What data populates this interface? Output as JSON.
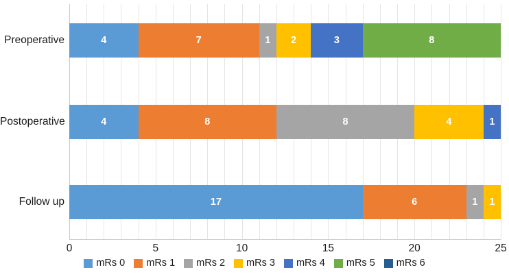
{
  "chart_data": {
    "type": "bar",
    "orientation": "horizontal",
    "stacked": true,
    "title": "",
    "xlabel": "",
    "ylabel": "",
    "categories": [
      "Preoperative",
      "Postoperative",
      "Follow up"
    ],
    "series": [
      {
        "name": "mRs 0",
        "color": "#5B9BD5",
        "values": [
          4,
          4,
          17
        ]
      },
      {
        "name": "mRs 1",
        "color": "#ED7D31",
        "values": [
          7,
          8,
          6
        ]
      },
      {
        "name": "mRs 2",
        "color": "#A5A5A5",
        "values": [
          1,
          8,
          1
        ]
      },
      {
        "name": "mRs 3",
        "color": "#FFC000",
        "values": [
          2,
          4,
          1
        ]
      },
      {
        "name": "mRs 4",
        "color": "#4472C4",
        "values": [
          3,
          1,
          0
        ]
      },
      {
        "name": "mRs 5",
        "color": "#70AD47",
        "values": [
          8,
          0,
          0
        ]
      },
      {
        "name": "mRs 6",
        "color": "#255E91",
        "values": [
          0,
          0,
          0
        ]
      }
    ],
    "xlim": [
      0,
      25
    ],
    "x_ticks": [
      "0",
      "5",
      "10",
      "15",
      "20",
      "25"
    ],
    "x_tick_values": [
      0,
      5,
      10,
      15,
      20,
      25
    ],
    "minor_grid_step": 1,
    "grid": true,
    "legend_position": "bottom",
    "data_labels": "white, centered in each nonzero segment",
    "data_label_color": "#FFFFFF"
  }
}
